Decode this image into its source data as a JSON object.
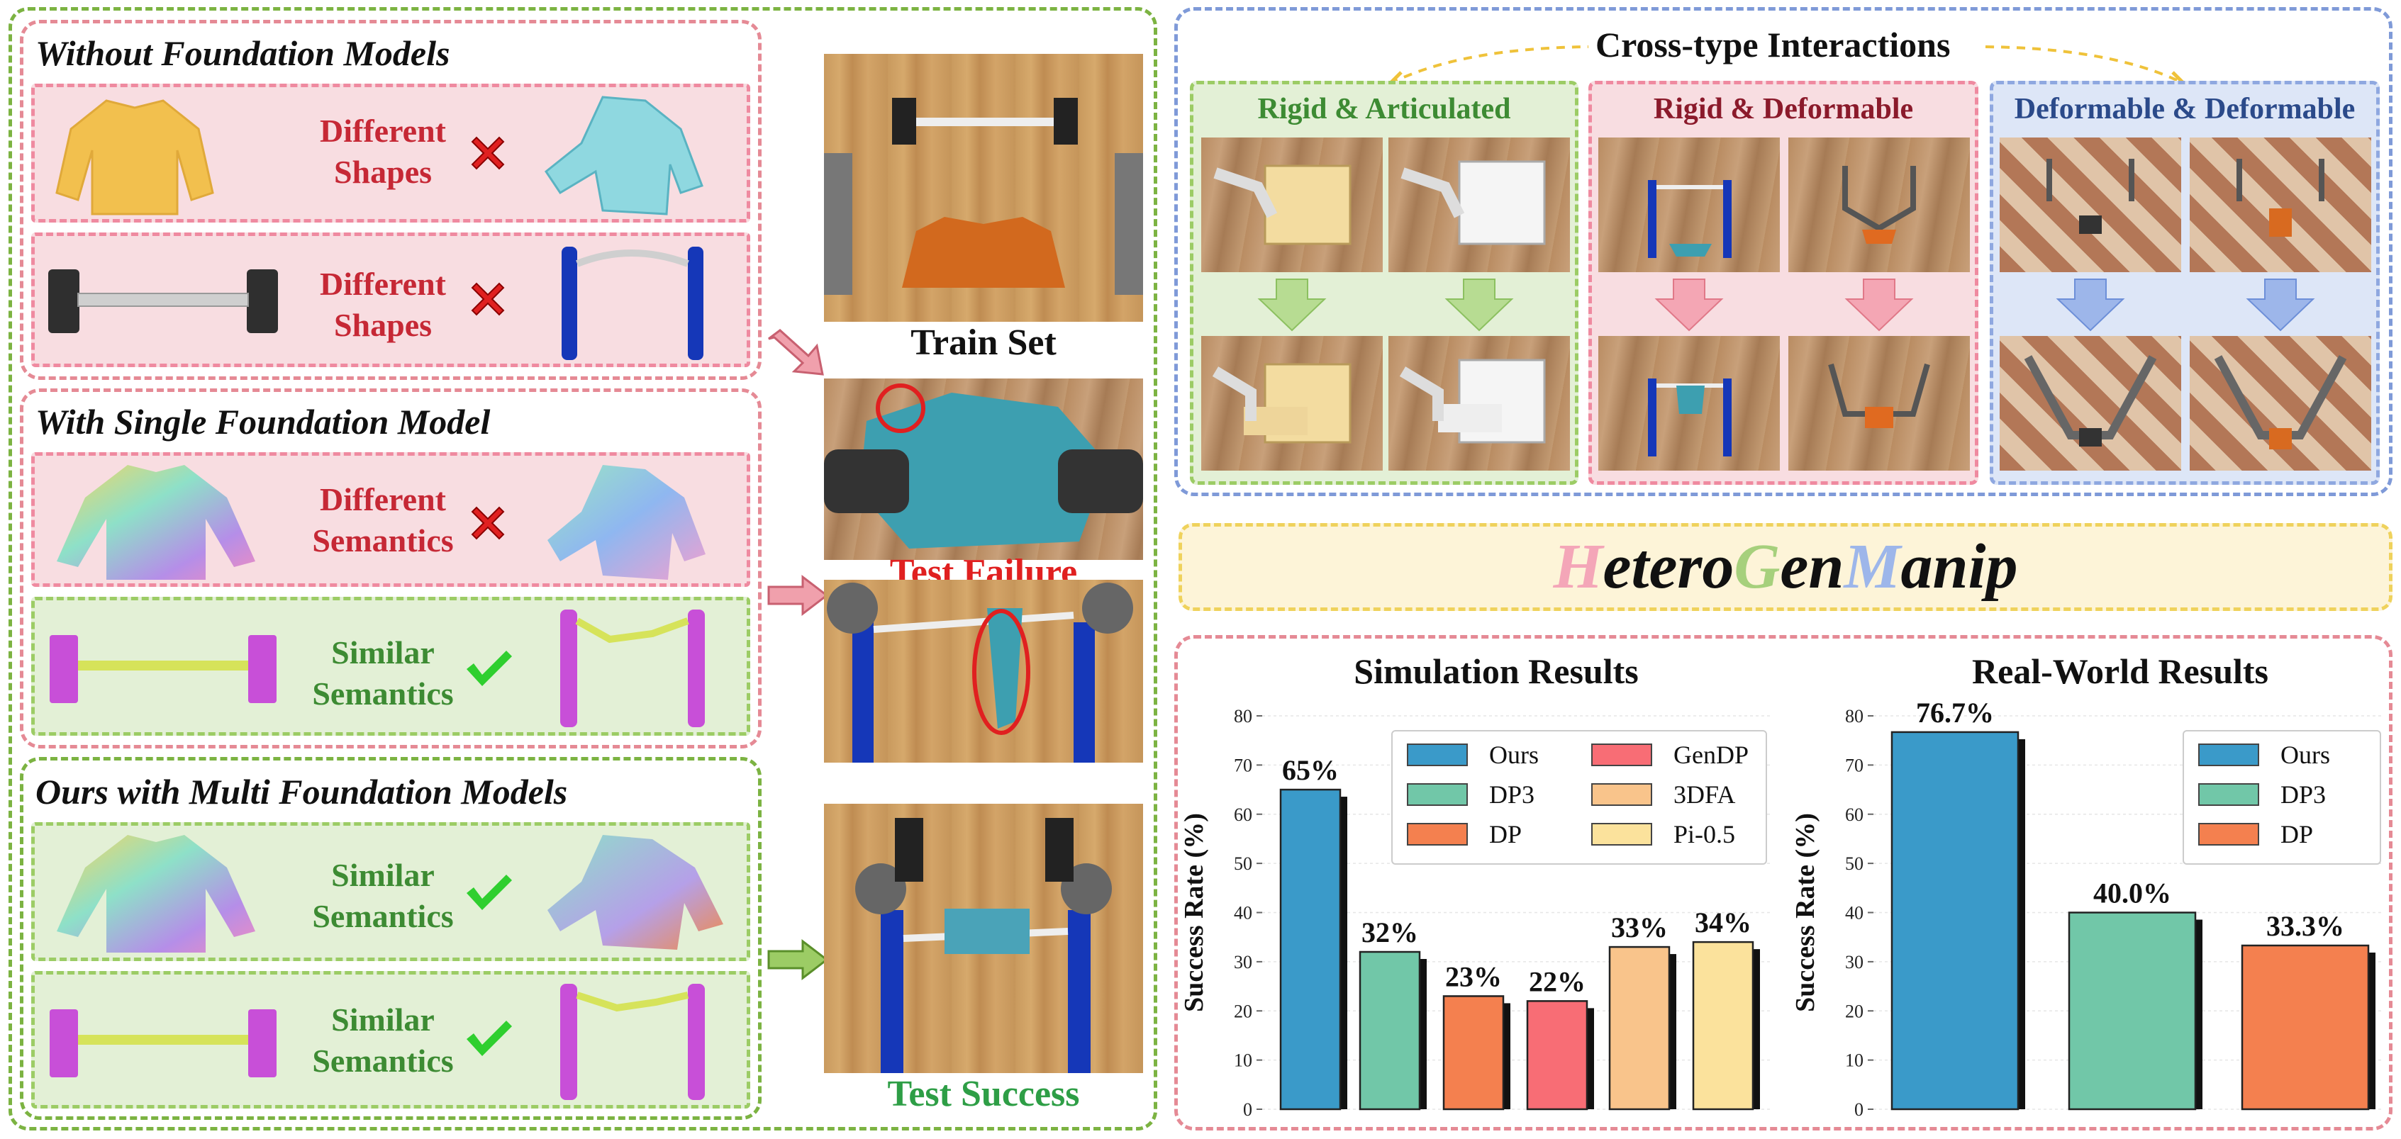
{
  "left": {
    "without": {
      "title": "Without Foundation Models",
      "row1": {
        "label_l1": "Different",
        "label_l2": "Shapes",
        "mark": "cross-mark"
      },
      "row2": {
        "label_l1": "Different",
        "label_l2": "Shapes",
        "mark": "cross-mark"
      }
    },
    "single": {
      "title": "With Single Foundation Model",
      "row1": {
        "label_l1": "Different",
        "label_l2": "Semantics",
        "mark": "cross-mark"
      },
      "row2": {
        "label_l1": "Similar",
        "label_l2": "Semantics",
        "mark": "check-mark"
      }
    },
    "ours": {
      "title": "Ours with Multi Foundation Models",
      "row1": {
        "label_l1": "Similar",
        "label_l2": "Semantics",
        "mark": "check-mark"
      },
      "row2": {
        "label_l1": "Similar",
        "label_l2": "Semantics",
        "mark": "check-mark"
      }
    }
  },
  "middle": {
    "train_set": "Train Set",
    "test_failure": "Test Failure",
    "test_success": "Test Success"
  },
  "colors": {
    "red_text": "#c62835",
    "green_text": "#3d8b33",
    "ours": "#3a9ac9",
    "dp3": "#71c7a8",
    "dp": "#f4804f",
    "gendp": "#f86d75",
    "3dfa": "#f9c48b",
    "pi05": "#fbe29c"
  },
  "cross_type": {
    "title": "Cross-type Interactions",
    "panels": [
      {
        "title": "Rigid & Articulated"
      },
      {
        "title": "Rigid & Deformable"
      },
      {
        "title": "Deformable & Deformable"
      }
    ]
  },
  "brand": {
    "parts": [
      "H",
      "etero",
      "G",
      "en",
      "M",
      "anip"
    ]
  },
  "chart_data": [
    {
      "type": "bar",
      "title": "Simulation Results",
      "ylabel": "Success Rate (%)",
      "ylim": [
        0,
        80
      ],
      "yticks": [
        "0",
        "10",
        "20",
        "30",
        "40",
        "50",
        "60",
        "70",
        "80"
      ],
      "categories": [
        "Ours",
        "DP3",
        "DP",
        "GenDP",
        "3DFA",
        "Pi-0.5"
      ],
      "values": [
        65,
        32,
        23,
        22,
        33,
        34
      ],
      "labels": [
        "65%",
        "32%",
        "23%",
        "22%",
        "33%",
        "34%"
      ],
      "legend_position": "top-right",
      "legend_columns": 2
    },
    {
      "type": "bar",
      "title": "Real-World Results",
      "ylabel": "Success Rate (%)",
      "ylim": [
        0,
        80
      ],
      "yticks": [
        "0",
        "10",
        "20",
        "30",
        "40",
        "50",
        "60",
        "70",
        "80"
      ],
      "categories": [
        "Ours",
        "DP3",
        "DP"
      ],
      "values": [
        76.7,
        40.0,
        33.3
      ],
      "labels": [
        "76.7%",
        "40.0%",
        "33.3%"
      ],
      "legend_position": "top-right",
      "legend_columns": 1
    }
  ]
}
